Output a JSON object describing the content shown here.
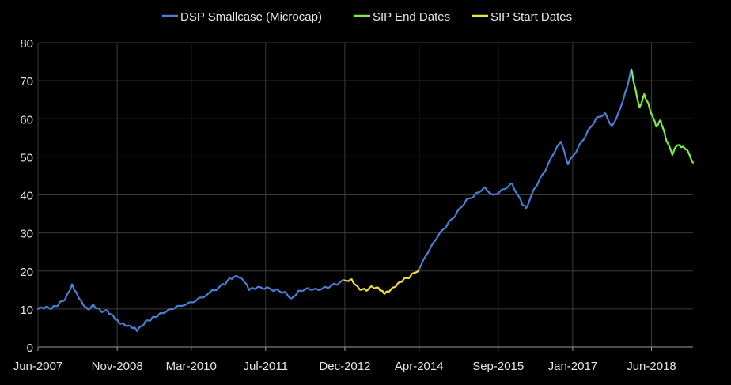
{
  "chart_data": {
    "type": "line",
    "title": "",
    "xlabel": "",
    "ylabel": "",
    "ylim": [
      0,
      80
    ],
    "y_ticks": [
      0,
      10,
      20,
      30,
      40,
      50,
      60,
      70,
      80
    ],
    "x_ticks": [
      "Jun-2007",
      "Nov-2008",
      "Mar-2010",
      "Jul-2011",
      "Dec-2012",
      "Apr-2014",
      "Sep-2015",
      "Jan-2017",
      "Jun-2018"
    ],
    "x_tick_dates": [
      "2007-06-01",
      "2008-11-01",
      "2010-03-01",
      "2011-07-01",
      "2012-12-01",
      "2014-04-01",
      "2015-09-01",
      "2017-01-01",
      "2018-06-01"
    ],
    "xlim": [
      "2007-06-01",
      "2019-02-28"
    ],
    "grid": true,
    "legend_position": "top",
    "background": "#000000",
    "series": [
      {
        "name": "DSP Smallcase (Microcap)",
        "color": "#4a7fd6",
        "points": [
          [
            "2007-06-01",
            10.0
          ],
          [
            "2007-07-15",
            10.3
          ],
          [
            "2007-09-01",
            10.2
          ],
          [
            "2007-10-15",
            11.3
          ],
          [
            "2007-12-01",
            13.0
          ],
          [
            "2008-01-10",
            16.5
          ],
          [
            "2008-02-05",
            14.5
          ],
          [
            "2008-03-15",
            11.8
          ],
          [
            "2008-04-20",
            10.0
          ],
          [
            "2008-06-01",
            11.0
          ],
          [
            "2008-07-15",
            9.5
          ],
          [
            "2008-09-01",
            9.3
          ],
          [
            "2008-10-15",
            7.5
          ],
          [
            "2008-11-15",
            6.2
          ],
          [
            "2009-01-01",
            5.5
          ],
          [
            "2009-02-15",
            5.0
          ],
          [
            "2009-03-15",
            4.3
          ],
          [
            "2009-05-01",
            6.5
          ],
          [
            "2009-06-15",
            7.5
          ],
          [
            "2009-08-01",
            8.6
          ],
          [
            "2009-10-01",
            9.8
          ],
          [
            "2009-12-01",
            10.8
          ],
          [
            "2010-03-01",
            11.8
          ],
          [
            "2010-05-01",
            13.0
          ],
          [
            "2010-08-01",
            15.0
          ],
          [
            "2010-10-01",
            16.5
          ],
          [
            "2010-11-15",
            18.0
          ],
          [
            "2011-01-01",
            18.5
          ],
          [
            "2011-02-15",
            17.0
          ],
          [
            "2011-03-15",
            15.0
          ],
          [
            "2011-05-01",
            15.5
          ],
          [
            "2011-07-01",
            15.5
          ],
          [
            "2011-09-01",
            15.0
          ],
          [
            "2011-11-01",
            14.5
          ],
          [
            "2011-12-20",
            12.8
          ],
          [
            "2012-02-01",
            14.8
          ],
          [
            "2012-04-01",
            15.5
          ],
          [
            "2012-06-01",
            15.2
          ],
          [
            "2012-08-01",
            15.7
          ],
          [
            "2012-10-01",
            16.5
          ],
          [
            "2012-12-01",
            17.5
          ]
        ]
      },
      {
        "name": "SIP Start Dates",
        "color": "#f0e040",
        "points": [
          [
            "2012-12-01",
            17.5
          ],
          [
            "2013-01-15",
            17.8
          ],
          [
            "2013-03-01",
            15.5
          ],
          [
            "2013-04-15",
            15.0
          ],
          [
            "2013-06-01",
            15.8
          ],
          [
            "2013-07-15",
            15.2
          ],
          [
            "2013-08-15",
            14.0
          ],
          [
            "2013-09-15",
            14.5
          ],
          [
            "2013-11-01",
            16.0
          ],
          [
            "2013-12-15",
            17.5
          ],
          [
            "2014-02-01",
            18.5
          ],
          [
            "2014-04-01",
            20.5
          ]
        ]
      },
      {
        "name": "DSP Smallcase (Microcap)",
        "color": "#4a7fd6",
        "points": [
          [
            "2014-04-01",
            20.5
          ],
          [
            "2014-06-01",
            25.0
          ],
          [
            "2014-08-01",
            29.0
          ],
          [
            "2014-10-01",
            32.0
          ],
          [
            "2014-12-01",
            35.0
          ],
          [
            "2015-02-01",
            38.5
          ],
          [
            "2015-04-01",
            40.0
          ],
          [
            "2015-06-01",
            42.0
          ],
          [
            "2015-08-01",
            40.0
          ],
          [
            "2015-10-01",
            41.5
          ],
          [
            "2015-12-01",
            43.0
          ],
          [
            "2016-02-01",
            38.0
          ],
          [
            "2016-03-01",
            36.5
          ],
          [
            "2016-05-01",
            42.0
          ],
          [
            "2016-07-01",
            46.0
          ],
          [
            "2016-09-01",
            51.0
          ],
          [
            "2016-10-15",
            54.0
          ],
          [
            "2016-12-01",
            48.0
          ],
          [
            "2017-02-01",
            52.0
          ],
          [
            "2017-04-01",
            56.0
          ],
          [
            "2017-06-01",
            60.0
          ],
          [
            "2017-08-01",
            61.5
          ],
          [
            "2017-09-15",
            58.0
          ],
          [
            "2017-11-01",
            62.0
          ],
          [
            "2017-12-20",
            68.0
          ],
          [
            "2018-01-20",
            73.0
          ]
        ]
      },
      {
        "name": "SIP End Dates",
        "color": "#7cf040",
        "points": [
          [
            "2018-01-20",
            73.0
          ],
          [
            "2018-02-15",
            68.0
          ],
          [
            "2018-03-15",
            63.0
          ],
          [
            "2018-04-15",
            66.5
          ],
          [
            "2018-05-15",
            63.5
          ],
          [
            "2018-07-01",
            58.0
          ],
          [
            "2018-08-01",
            59.5
          ],
          [
            "2018-09-01",
            55.0
          ],
          [
            "2018-10-15",
            50.5
          ],
          [
            "2018-11-15",
            53.0
          ],
          [
            "2018-12-15",
            52.5
          ],
          [
            "2019-01-15",
            52.0
          ],
          [
            "2019-02-28",
            48.5
          ]
        ]
      }
    ],
    "legend": [
      {
        "name": "DSP Smallcase (Microcap)",
        "color": "#4a7fd6"
      },
      {
        "name": "SIP End Dates",
        "color": "#7cf040"
      },
      {
        "name": "SIP Start Dates",
        "color": "#f0e040"
      }
    ]
  }
}
